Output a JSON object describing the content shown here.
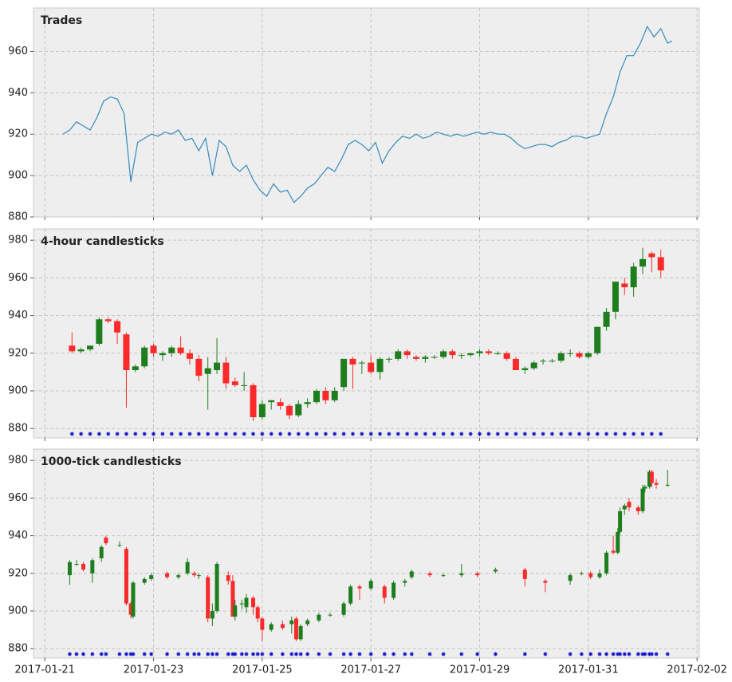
{
  "chart_data": [
    {
      "type": "line",
      "title": "Trades",
      "color": "#348abd",
      "grid": true,
      "xlim": [
        "2017-01-20 19:00",
        "2017-02-02 01:00"
      ],
      "xticks": [
        "2017-01-21",
        "2017-01-23",
        "2017-01-25",
        "2017-01-27",
        "2017-01-29",
        "2017-01-31",
        "2017-02-02"
      ],
      "ylim": [
        880,
        981
      ],
      "yticks": [
        880,
        900,
        920,
        940,
        960
      ],
      "x": [
        "2017-01-21 08:00",
        "2017-01-21 11:00",
        "2017-01-21 14:00",
        "2017-01-21 17:00",
        "2017-01-21 20:00",
        "2017-01-21 23:00",
        "2017-01-22 02:00",
        "2017-01-22 05:00",
        "2017-01-22 08:00",
        "2017-01-22 11:00",
        "2017-01-22 14:00",
        "2017-01-22 17:00",
        "2017-01-22 20:00",
        "2017-01-22 23:00",
        "2017-01-23 02:00",
        "2017-01-23 05:00",
        "2017-01-23 08:00",
        "2017-01-23 11:00",
        "2017-01-23 14:00",
        "2017-01-23 17:00",
        "2017-01-23 20:00",
        "2017-01-23 23:00",
        "2017-01-24 02:00",
        "2017-01-24 05:00",
        "2017-01-24 08:00",
        "2017-01-24 11:00",
        "2017-01-24 14:00",
        "2017-01-24 17:00",
        "2017-01-24 20:00",
        "2017-01-24 23:00",
        "2017-01-25 02:00",
        "2017-01-25 05:00",
        "2017-01-25 08:00",
        "2017-01-25 11:00",
        "2017-01-25 14:00",
        "2017-01-25 17:00",
        "2017-01-25 20:00",
        "2017-01-25 23:00",
        "2017-01-26 02:00",
        "2017-01-26 05:00",
        "2017-01-26 08:00",
        "2017-01-26 11:00",
        "2017-01-26 14:00",
        "2017-01-26 17:00",
        "2017-01-26 20:00",
        "2017-01-26 23:00",
        "2017-01-27 02:00",
        "2017-01-27 05:00",
        "2017-01-27 08:00",
        "2017-01-27 11:00",
        "2017-01-27 14:00",
        "2017-01-27 17:00",
        "2017-01-27 20:00",
        "2017-01-27 23:00",
        "2017-01-28 02:00",
        "2017-01-28 05:00",
        "2017-01-28 08:00",
        "2017-01-28 11:00",
        "2017-01-28 14:00",
        "2017-01-28 17:00",
        "2017-01-28 20:00",
        "2017-01-28 23:00",
        "2017-01-29 02:00",
        "2017-01-29 05:00",
        "2017-01-29 08:00",
        "2017-01-29 11:00",
        "2017-01-29 14:00",
        "2017-01-29 17:00",
        "2017-01-29 20:00",
        "2017-01-29 23:00",
        "2017-01-30 02:00",
        "2017-01-30 05:00",
        "2017-01-30 08:00",
        "2017-01-30 11:00",
        "2017-01-30 14:00",
        "2017-01-30 17:00",
        "2017-01-30 20:00",
        "2017-01-30 23:00",
        "2017-01-31 02:00",
        "2017-01-31 05:00",
        "2017-01-31 08:00",
        "2017-01-31 11:00",
        "2017-01-31 14:00",
        "2017-01-31 17:00",
        "2017-01-31 20:00",
        "2017-01-31 23:00",
        "2017-02-01 02:00",
        "2017-02-01 05:00",
        "2017-02-01 08:00",
        "2017-02-01 11:00",
        "2017-02-01 13:00"
      ],
      "values": [
        920,
        922,
        926,
        924,
        922,
        928,
        936,
        938,
        937,
        930,
        897,
        916,
        918,
        920,
        919,
        921,
        920,
        922,
        917,
        918,
        912,
        918,
        900,
        917,
        914,
        905,
        902,
        905,
        898,
        893,
        890,
        896,
        892,
        893,
        887,
        890,
        894,
        896,
        900,
        904,
        902,
        908,
        915,
        917,
        915,
        912,
        916,
        906,
        912,
        916,
        919,
        918,
        920,
        918,
        919,
        921,
        920,
        919,
        920,
        919,
        920,
        921,
        920,
        921,
        920,
        920,
        918,
        915,
        913,
        914,
        915,
        915,
        914,
        916,
        917,
        919,
        919,
        918,
        919,
        920,
        930,
        938,
        950,
        958,
        958,
        964,
        972,
        967,
        971,
        964,
        965
      ]
    },
    {
      "type": "candlestick",
      "title": "4-hour candlesticks",
      "up_color": "#1e7e1e",
      "down_color": "#f82a2a",
      "marker_color": "#1010cc",
      "grid": true,
      "xlim": [
        "2017-01-20 19:00",
        "2017-02-02 01:00"
      ],
      "xticks": [
        "2017-01-21",
        "2017-01-23",
        "2017-01-25",
        "2017-01-27",
        "2017-01-29",
        "2017-01-31",
        "2017-02-02"
      ],
      "ylim": [
        875,
        986
      ],
      "yticks": [
        880,
        900,
        920,
        940,
        960,
        980
      ],
      "x": [
        "2017-01-21 12:00",
        "2017-01-21 16:00",
        "2017-01-21 20:00",
        "2017-01-22 00:00",
        "2017-01-22 04:00",
        "2017-01-22 08:00",
        "2017-01-22 12:00",
        "2017-01-22 16:00",
        "2017-01-22 20:00",
        "2017-01-23 00:00",
        "2017-01-23 04:00",
        "2017-01-23 08:00",
        "2017-01-23 12:00",
        "2017-01-23 16:00",
        "2017-01-23 20:00",
        "2017-01-24 00:00",
        "2017-01-24 04:00",
        "2017-01-24 08:00",
        "2017-01-24 12:00",
        "2017-01-24 16:00",
        "2017-01-24 20:00",
        "2017-01-25 00:00",
        "2017-01-25 04:00",
        "2017-01-25 08:00",
        "2017-01-25 12:00",
        "2017-01-25 16:00",
        "2017-01-25 20:00",
        "2017-01-26 00:00",
        "2017-01-26 04:00",
        "2017-01-26 08:00",
        "2017-01-26 12:00",
        "2017-01-26 16:00",
        "2017-01-26 20:00",
        "2017-01-27 00:00",
        "2017-01-27 04:00",
        "2017-01-27 08:00",
        "2017-01-27 12:00",
        "2017-01-27 16:00",
        "2017-01-27 20:00",
        "2017-01-28 00:00",
        "2017-01-28 04:00",
        "2017-01-28 08:00",
        "2017-01-28 12:00",
        "2017-01-28 16:00",
        "2017-01-28 20:00",
        "2017-01-29 00:00",
        "2017-01-29 04:00",
        "2017-01-29 08:00",
        "2017-01-29 12:00",
        "2017-01-29 16:00",
        "2017-01-29 20:00",
        "2017-01-30 00:00",
        "2017-01-30 04:00",
        "2017-01-30 08:00",
        "2017-01-30 12:00",
        "2017-01-30 16:00",
        "2017-01-30 20:00",
        "2017-01-31 00:00",
        "2017-01-31 04:00",
        "2017-01-31 08:00",
        "2017-01-31 12:00",
        "2017-01-31 16:00",
        "2017-01-31 20:00",
        "2017-02-01 00:00",
        "2017-02-01 04:00",
        "2017-02-01 08:00"
      ],
      "open": [
        924,
        921,
        922,
        925,
        938,
        937,
        930,
        911,
        913,
        924,
        919,
        920,
        923,
        920,
        917,
        909,
        911,
        915,
        905,
        903,
        903,
        886,
        894,
        894,
        892,
        887,
        893,
        894,
        900,
        895,
        902,
        917,
        915,
        915,
        910,
        917,
        917,
        921,
        918,
        917,
        918,
        918,
        921,
        919,
        919,
        920,
        921,
        920,
        920,
        917,
        911,
        912,
        916,
        916,
        916,
        920,
        920,
        918,
        920,
        934,
        942,
        957,
        955,
        966,
        973,
        971
      ],
      "high": [
        931,
        923,
        924,
        939,
        939,
        938,
        931,
        914,
        924,
        925,
        921,
        924,
        929,
        922,
        919,
        918,
        928,
        918,
        907,
        910,
        904,
        895,
        895,
        896,
        893,
        895,
        896,
        901,
        902,
        902,
        917,
        918,
        916,
        919,
        918,
        918,
        922,
        922,
        919,
        919,
        919,
        922,
        922,
        920,
        920,
        922,
        922,
        921,
        921,
        918,
        913,
        916,
        917,
        917,
        921,
        922,
        921,
        921,
        934,
        944,
        958,
        960,
        968,
        976,
        974,
        975
      ],
      "low": [
        920,
        920,
        921,
        924,
        936,
        925,
        891,
        910,
        912,
        918,
        916,
        918,
        919,
        914,
        905,
        890,
        909,
        901,
        902,
        900,
        884,
        885,
        890,
        890,
        885,
        886,
        891,
        893,
        893,
        894,
        900,
        901,
        909,
        909,
        906,
        915,
        916,
        917,
        916,
        915,
        917,
        917,
        917,
        917,
        918,
        918,
        919,
        919,
        916,
        911,
        909,
        911,
        914,
        915,
        915,
        918,
        917,
        917,
        919,
        932,
        938,
        951,
        950,
        962,
        963,
        960
      ],
      "close": [
        921,
        922,
        924,
        938,
        937,
        931,
        911,
        913,
        923,
        920,
        920,
        923,
        920,
        917,
        908,
        912,
        915,
        904,
        903,
        903,
        886,
        893,
        895,
        892,
        887,
        893,
        894,
        900,
        895,
        900,
        917,
        914,
        915,
        910,
        917,
        917,
        921,
        919,
        917,
        918,
        918,
        921,
        919,
        919,
        920,
        921,
        920,
        920,
        917,
        911,
        912,
        915,
        916,
        916,
        920,
        920,
        918,
        920,
        934,
        942,
        958,
        955,
        966,
        970,
        971,
        964
      ]
    },
    {
      "type": "candlestick",
      "title": "1000-tick candlesticks",
      "up_color": "#1e7e1e",
      "down_color": "#f82a2a",
      "marker_color": "#1010cc",
      "grid": true,
      "xlim": [
        "2017-01-20 19:00",
        "2017-02-02 01:00"
      ],
      "xticks": [
        "2017-01-21",
        "2017-01-23",
        "2017-01-25",
        "2017-01-27",
        "2017-01-29",
        "2017-01-31",
        "2017-02-02"
      ],
      "ylim": [
        875,
        986
      ],
      "yticks": [
        880,
        900,
        920,
        940,
        960,
        980
      ],
      "x": [
        "2017-01-21 11:00",
        "2017-01-21 14:00",
        "2017-01-21 17:00",
        "2017-01-21 21:00",
        "2017-01-22 01:00",
        "2017-01-22 03:00",
        "2017-01-22 09:00",
        "2017-01-22 12:00",
        "2017-01-22 14:00",
        "2017-01-22 15:00",
        "2017-01-22 20:00",
        "2017-01-22 23:00",
        "2017-01-23 06:00",
        "2017-01-23 11:00",
        "2017-01-23 15:00",
        "2017-01-23 18:00",
        "2017-01-23 20:00",
        "2017-01-24 00:00",
        "2017-01-24 02:00",
        "2017-01-24 04:00",
        "2017-01-24 09:00",
        "2017-01-24 11:00",
        "2017-01-24 12:00",
        "2017-01-24 15:00",
        "2017-01-24 17:00",
        "2017-01-24 20:00",
        "2017-01-24 22:00",
        "2017-01-25 00:00",
        "2017-01-25 04:00",
        "2017-01-25 09:00",
        "2017-01-25 13:00",
        "2017-01-25 15:00",
        "2017-01-25 17:00",
        "2017-01-25 20:00",
        "2017-01-26 01:00",
        "2017-01-26 06:00",
        "2017-01-26 12:00",
        "2017-01-26 15:00",
        "2017-01-26 19:00",
        "2017-01-27 00:00",
        "2017-01-27 06:00",
        "2017-01-27 10:00",
        "2017-01-27 15:00",
        "2017-01-27 18:00",
        "2017-01-28 02:00",
        "2017-01-28 08:00",
        "2017-01-28 16:00",
        "2017-01-28 23:00",
        "2017-01-29 07:00",
        "2017-01-29 20:00",
        "2017-01-30 05:00",
        "2017-01-30 16:00",
        "2017-01-30 21:00",
        "2017-01-31 01:00",
        "2017-01-31 05:00",
        "2017-01-31 08:00",
        "2017-01-31 11:00",
        "2017-01-31 13:00",
        "2017-01-31 14:00",
        "2017-01-31 16:00",
        "2017-01-31 18:00",
        "2017-01-31 22:00",
        "2017-02-01 00:00",
        "2017-02-01 01:00",
        "2017-02-01 03:00",
        "2017-02-01 04:00",
        "2017-02-01 06:00",
        "2017-02-01 11:00"
      ],
      "open": [
        919,
        925,
        925,
        920,
        928,
        939,
        935,
        933,
        904,
        897,
        915,
        917,
        920,
        918,
        920,
        920,
        919,
        918,
        896,
        900,
        919,
        916,
        897,
        904,
        902,
        907,
        902,
        896,
        890,
        893,
        893,
        896,
        885,
        893,
        895,
        898,
        898,
        904,
        913,
        912,
        913,
        907,
        915,
        918,
        920,
        919,
        919,
        920,
        921,
        922,
        916,
        916,
        920,
        920,
        918,
        920,
        932,
        931,
        942,
        954,
        958,
        955,
        953,
        965,
        966,
        974,
        968,
        967
      ],
      "high": [
        927,
        927,
        926,
        928,
        935,
        940,
        937,
        934,
        905,
        916,
        918,
        920,
        921,
        920,
        928,
        921,
        920,
        919,
        904,
        926,
        921,
        919,
        906,
        906,
        909,
        908,
        903,
        897,
        894,
        895,
        897,
        897,
        893,
        896,
        899,
        899,
        905,
        914,
        914,
        917,
        914,
        916,
        917,
        922,
        921,
        920,
        925,
        921,
        923,
        923,
        917,
        920,
        921,
        921,
        922,
        932,
        940,
        944,
        955,
        957,
        960,
        956,
        967,
        967,
        975,
        975,
        970,
        975
      ],
      "low": [
        914,
        924,
        921,
        915,
        926,
        935,
        934,
        903,
        896,
        896,
        914,
        916,
        917,
        917,
        919,
        918,
        917,
        894,
        892,
        899,
        914,
        897,
        895,
        901,
        899,
        898,
        894,
        884,
        889,
        890,
        888,
        884,
        884,
        892,
        894,
        897,
        897,
        903,
        906,
        911,
        904,
        906,
        913,
        917,
        918,
        918,
        918,
        918,
        920,
        913,
        910,
        914,
        919,
        917,
        917,
        919,
        930,
        930,
        941,
        951,
        953,
        951,
        952,
        963,
        965,
        966,
        965,
        966
      ],
      "close": [
        926,
        925,
        922,
        927,
        934,
        936,
        935,
        904,
        898,
        915,
        917,
        919,
        918,
        919,
        926,
        919,
        919,
        896,
        900,
        925,
        916,
        897,
        903,
        904,
        907,
        902,
        896,
        890,
        893,
        891,
        895,
        885,
        892,
        895,
        898,
        898,
        904,
        913,
        912,
        916,
        907,
        915,
        916,
        921,
        919,
        919,
        920,
        919,
        922,
        917,
        915,
        919,
        920,
        918,
        920,
        931,
        931,
        942,
        953,
        956,
        955,
        953,
        965,
        966,
        974,
        968,
        967,
        967
      ]
    }
  ]
}
